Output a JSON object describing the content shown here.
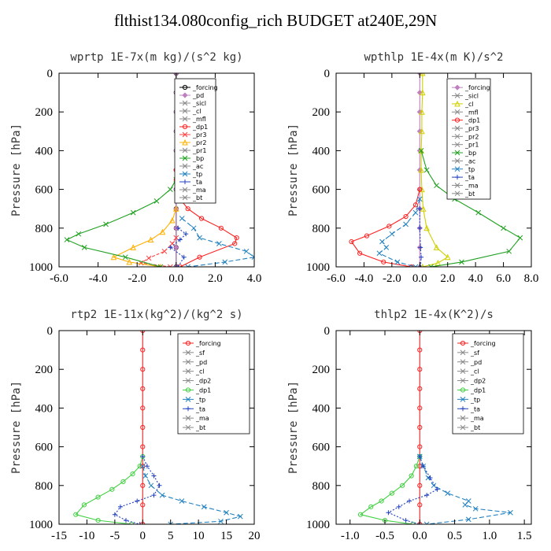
{
  "title": "flthist134.080config_rich  BUDGET at240E,29N",
  "chart_data": [
    {
      "type": "line",
      "title": "wprtp  1E-7x(m kg)/(s^2 kg)",
      "ylabel": "Pressure [hPa]",
      "xlim": [
        -6,
        4
      ],
      "xticks": [
        "-6.0",
        "-4.0",
        "-2.0",
        "0.0",
        "2.0",
        "4.0"
      ],
      "ylim": [
        1000,
        0
      ],
      "yticks": [
        "0",
        "200",
        "400",
        "600",
        "800",
        "1000"
      ],
      "grid": false,
      "legend_position": "top-right",
      "legend": [
        "_forcing",
        "_pd",
        "_sicl",
        "_cl",
        "_mfl",
        "_dp1",
        "_pr3",
        "_pr2",
        "_pr1",
        "_bp",
        "_ac",
        "_tp",
        "_ta",
        "_ma",
        "_bt"
      ],
      "series": [
        {
          "name": "_forcing",
          "color": "#000000",
          "marker": "circle",
          "dash": "",
          "x": [
            0,
            0,
            0,
            0,
            0,
            0,
            0,
            0,
            0,
            0,
            0
          ],
          "y": [
            0,
            100,
            200,
            300,
            400,
            500,
            600,
            700,
            800,
            900,
            1000
          ]
        },
        {
          "name": "_pd",
          "color": "#c080c0",
          "marker": "diamond",
          "dash": "",
          "x": [
            0,
            0,
            0,
            0,
            0,
            0,
            0,
            0,
            0,
            0,
            0
          ],
          "y": [
            0,
            100,
            200,
            300,
            400,
            500,
            600,
            700,
            800,
            900,
            1000
          ]
        },
        {
          "name": "_dp1",
          "color": "#ff2020",
          "marker": "circle",
          "dash": "",
          "x": [
            0,
            0,
            0.05,
            0.2,
            0.6,
            1.3,
            2.3,
            3.1,
            3.0,
            1.2,
            0.2
          ],
          "y": [
            500,
            550,
            600,
            650,
            700,
            750,
            800,
            850,
            880,
            950,
            1000
          ]
        },
        {
          "name": "_pr3",
          "color": "#ff4040",
          "marker": "x",
          "dash": "4,2",
          "x": [
            0,
            -0.2,
            -0.6,
            -1.4,
            -1.8,
            -0.3
          ],
          "y": [
            850,
            880,
            920,
            955,
            980,
            1000
          ]
        },
        {
          "name": "_pr2",
          "color": "#ffb000",
          "marker": "triangle",
          "dash": "",
          "x": [
            0,
            -0.2,
            -0.7,
            -1.3,
            -2.2,
            -3.2,
            -2.4,
            -0.8
          ],
          "y": [
            700,
            760,
            820,
            860,
            900,
            950,
            975,
            1000
          ]
        },
        {
          "name": "_bp",
          "color": "#20a020",
          "marker": "x",
          "dash": "",
          "x": [
            0,
            -0.3,
            -1.0,
            -2.2,
            -3.6,
            -5.0,
            -5.6,
            -4.7,
            -2.6,
            -0.8
          ],
          "y": [
            550,
            600,
            660,
            720,
            780,
            830,
            860,
            900,
            950,
            1000
          ]
        },
        {
          "name": "_tp",
          "color": "#2080c0",
          "marker": "x",
          "dash": "6,3",
          "x": [
            0.3,
            0.9,
            1.2,
            2.2,
            3.6,
            4.0,
            2.5,
            0.6
          ],
          "y": [
            750,
            800,
            850,
            880,
            920,
            950,
            975,
            1000
          ]
        },
        {
          "name": "_ta",
          "color": "#2040c0",
          "marker": "plus",
          "dash": "2,2",
          "x": [
            0.1,
            0.5,
            0.2,
            -0.3,
            0.4,
            0.1
          ],
          "y": [
            800,
            830,
            860,
            900,
            950,
            1000
          ]
        }
      ]
    },
    {
      "type": "line",
      "title": "wpthlp  1E-4x(m K)/s^2",
      "ylabel": "Pressure [hPa]",
      "xlim": [
        -6,
        8
      ],
      "xticks": [
        "-6.0",
        "-4.0",
        "-2.0",
        "0.0",
        "2.0",
        "4.0",
        "6.0",
        "8.0"
      ],
      "ylim": [
        1000,
        0
      ],
      "yticks": [
        "0",
        "200",
        "400",
        "600",
        "800",
        "1000"
      ],
      "grid": false,
      "legend_position": "top-right",
      "legend": [
        "_forcing",
        "_sicl",
        "_cl",
        "_mfl",
        "_dp1",
        "_pr3",
        "_pr2",
        "_pr1",
        "_bp",
        "_ac",
        "_tp",
        "_ta",
        "_ma",
        "_bt"
      ],
      "series": [
        {
          "name": "_forcing",
          "color": "#c080c0",
          "marker": "diamond",
          "dash": "",
          "x": [
            0,
            0,
            0,
            0,
            0,
            0,
            0,
            0,
            0,
            0,
            0
          ],
          "y": [
            0,
            100,
            200,
            300,
            400,
            500,
            600,
            700,
            800,
            900,
            1000
          ]
        },
        {
          "name": "_cl",
          "color": "#d0d000",
          "marker": "triangle",
          "dash": "",
          "x": [
            0.2,
            0.2,
            0.15,
            0.15,
            0.1,
            0.1,
            0.15,
            0.25,
            0.5,
            1.2,
            2.0,
            1.3,
            0.2
          ],
          "y": [
            0,
            100,
            200,
            300,
            400,
            500,
            600,
            700,
            800,
            900,
            950,
            980,
            1000
          ]
        },
        {
          "name": "_dp1",
          "color": "#ff2020",
          "marker": "circle",
          "dash": "",
          "x": [
            0,
            -0.3,
            -1.0,
            -2.2,
            -3.8,
            -4.9,
            -4.3,
            -2.6,
            -0.6
          ],
          "y": [
            600,
            680,
            740,
            790,
            840,
            870,
            930,
            975,
            1000
          ]
        },
        {
          "name": "_bp",
          "color": "#20a020",
          "marker": "x",
          "dash": "",
          "x": [
            0.1,
            0.5,
            1.2,
            2.5,
            4.2,
            6.0,
            7.2,
            6.4,
            3.0,
            0.8
          ],
          "y": [
            400,
            500,
            580,
            650,
            720,
            800,
            850,
            920,
            975,
            1000
          ]
        },
        {
          "name": "_tp",
          "color": "#2080c0",
          "marker": "x",
          "dash": "6,3",
          "x": [
            0,
            -0.3,
            -1.0,
            -2.0,
            -2.7,
            -2.4,
            -2.9,
            -1.6,
            -0.3
          ],
          "y": [
            650,
            720,
            780,
            830,
            870,
            900,
            930,
            975,
            1000
          ]
        },
        {
          "name": "_ta",
          "color": "#2040c0",
          "marker": "plus",
          "dash": "2,2",
          "x": [
            0,
            0,
            0.05,
            0.1,
            0.05
          ],
          "y": [
            700,
            800,
            900,
            950,
            1000
          ]
        }
      ]
    },
    {
      "type": "line",
      "title": "rtp2  1E-11x(kg^2)/(kg^2 s)",
      "ylabel": "Pressure [hPa]",
      "xlim": [
        -15,
        20
      ],
      "xticks": [
        "-15",
        "-10",
        "-5",
        "0",
        "5",
        "10",
        "15",
        "20"
      ],
      "ylim": [
        1000,
        0
      ],
      "yticks": [
        "0",
        "200",
        "400",
        "600",
        "800",
        "1000"
      ],
      "grid": false,
      "legend_position": "top-right",
      "legend": [
        "_forcing",
        "_sf",
        "_pd",
        "_cl",
        "_dp2",
        "_dp1",
        "_tp",
        "_ta",
        "_ma",
        "_bt"
      ],
      "series": [
        {
          "name": "_forcing",
          "color": "#ff2020",
          "marker": "circle",
          "dash": "",
          "x": [
            0,
            0,
            0,
            0,
            0,
            0,
            0,
            0,
            0,
            0,
            0
          ],
          "y": [
            0,
            100,
            200,
            300,
            400,
            500,
            600,
            700,
            800,
            900,
            1000
          ]
        },
        {
          "name": "_dp1",
          "color": "#40d040",
          "marker": "circle",
          "dash": "",
          "x": [
            0,
            -0.5,
            -1.8,
            -3.5,
            -5.5,
            -8.0,
            -10.5,
            -12.0,
            -8.0,
            -2.0
          ],
          "y": [
            650,
            700,
            740,
            780,
            820,
            860,
            900,
            950,
            980,
            1000
          ]
        },
        {
          "name": "_tp",
          "color": "#2080c0",
          "marker": "x",
          "dash": "6,3",
          "x": [
            0,
            0.5,
            1.5,
            3.5,
            7,
            11,
            15,
            17.5,
            14,
            5
          ],
          "y": [
            700,
            750,
            800,
            850,
            880,
            910,
            940,
            960,
            985,
            1000
          ]
        },
        {
          "name": "_ta",
          "color": "#2040c0",
          "marker": "plus",
          "dash": "2,2",
          "x": [
            0,
            0.8,
            2,
            3,
            2,
            -1,
            -4,
            -5,
            -3,
            -0.5
          ],
          "y": [
            650,
            700,
            750,
            800,
            850,
            880,
            910,
            950,
            980,
            1000
          ]
        }
      ]
    },
    {
      "type": "line",
      "title": "thlp2  1E-4x(K^2)/s",
      "ylabel": "Pressure [hPa]",
      "xlim": [
        -1.2,
        1.6
      ],
      "xticks": [
        "-1.0",
        "-0.5",
        "0.0",
        "0.5",
        "1.0",
        "1.5"
      ],
      "ylim": [
        1000,
        0
      ],
      "yticks": [
        "0",
        "200",
        "400",
        "600",
        "800",
        "1000"
      ],
      "grid": false,
      "legend_position": "top-right",
      "legend": [
        "_forcing",
        "_sf",
        "_pd",
        "_cl",
        "_dp2",
        "_dp1",
        "_tp",
        "_ta",
        "_ma",
        "_bt"
      ],
      "series": [
        {
          "name": "_forcing",
          "color": "#ff2020",
          "marker": "circle",
          "dash": "",
          "x": [
            0,
            0,
            0,
            0,
            0,
            0,
            0,
            0,
            0,
            0,
            0
          ],
          "y": [
            0,
            100,
            200,
            300,
            400,
            500,
            600,
            700,
            800,
            900,
            1000
          ]
        },
        {
          "name": "_dp1",
          "color": "#40d040",
          "marker": "circle",
          "dash": "",
          "x": [
            0,
            -0.05,
            -0.12,
            -0.25,
            -0.4,
            -0.55,
            -0.7,
            -0.85,
            -0.5,
            -0.1
          ],
          "y": [
            650,
            700,
            750,
            800,
            840,
            880,
            910,
            950,
            980,
            1000
          ]
        },
        {
          "name": "_tp",
          "color": "#2080c0",
          "marker": "x",
          "dash": "6,3",
          "x": [
            0,
            0.05,
            0.12,
            0.2,
            0.4,
            0.7,
            0.65,
            0.8,
            1.3,
            0.7,
            0.1
          ],
          "y": [
            650,
            700,
            760,
            800,
            840,
            880,
            900,
            920,
            940,
            975,
            1000
          ]
        },
        {
          "name": "_ta",
          "color": "#2040c0",
          "marker": "plus",
          "dash": "2,2",
          "x": [
            0,
            0.05,
            0.15,
            0.25,
            0.1,
            -0.15,
            -0.3,
            -0.45,
            -0.2,
            0
          ],
          "y": [
            650,
            700,
            760,
            820,
            850,
            880,
            910,
            940,
            980,
            1000
          ]
        }
      ]
    }
  ]
}
